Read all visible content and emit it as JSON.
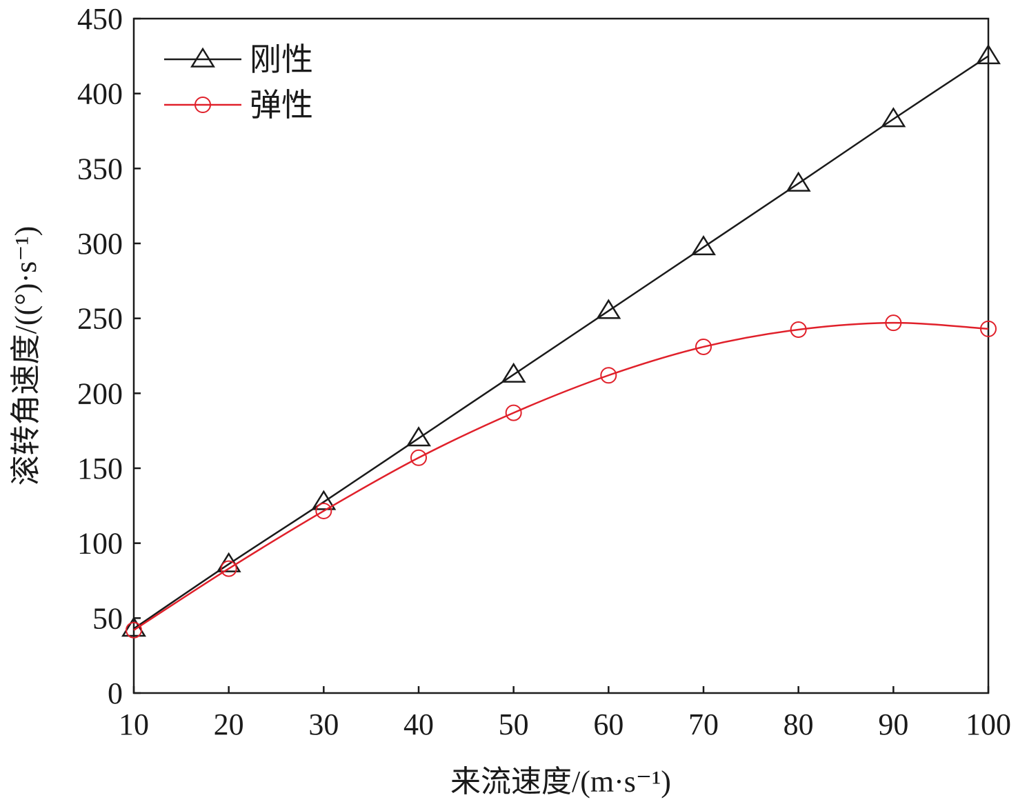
{
  "chart_data": {
    "type": "line",
    "title": "",
    "xlabel": "来流速度/(m·s⁻¹)",
    "ylabel": "滚转角速度/((°)·s⁻¹)",
    "xlim": [
      10,
      100
    ],
    "ylim": [
      0,
      450
    ],
    "xticks": [
      10,
      20,
      30,
      40,
      50,
      60,
      70,
      80,
      90,
      100
    ],
    "yticks": [
      0,
      50,
      100,
      150,
      200,
      250,
      300,
      350,
      400,
      450
    ],
    "x": [
      10,
      20,
      30,
      40,
      50,
      60,
      70,
      80,
      90,
      100
    ],
    "grid": false,
    "legend_position": "top-left",
    "series": [
      {
        "name": "刚性",
        "marker": "triangle",
        "color": "#1a1a1a",
        "values": [
          43,
          86,
          127.5,
          170,
          212.5,
          255,
          297.5,
          340,
          383,
          425
        ]
      },
      {
        "name": "弹性",
        "marker": "circle",
        "color": "#e0202a",
        "values": [
          42,
          83,
          121.5,
          157,
          187,
          212,
          231,
          242.5,
          247,
          243
        ]
      }
    ]
  }
}
